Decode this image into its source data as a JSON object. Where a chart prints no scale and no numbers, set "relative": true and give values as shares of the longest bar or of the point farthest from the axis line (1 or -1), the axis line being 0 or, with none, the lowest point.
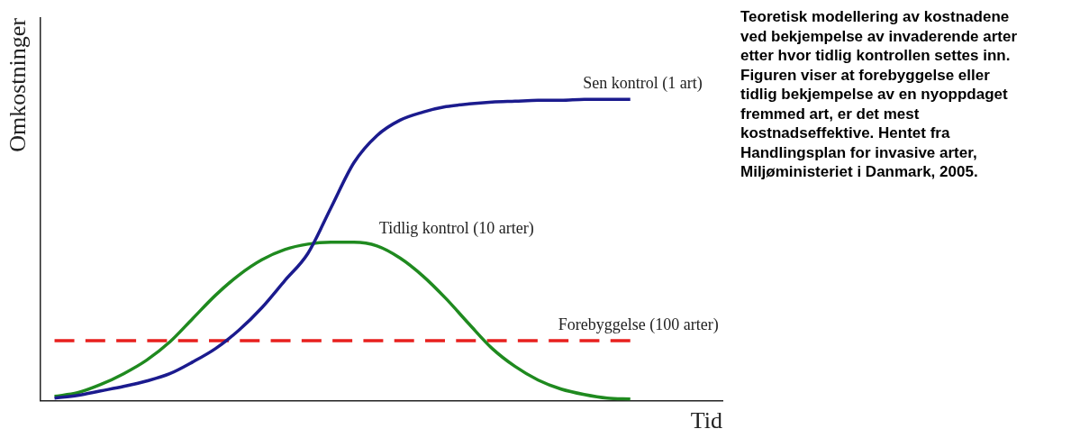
{
  "chart_data": {
    "type": "line",
    "relative": true,
    "xlabel": "Tid",
    "ylabel": "Omkostninger",
    "marker": "none",
    "legend": false,
    "categories": [
      null,
      null,
      null,
      null,
      null,
      null,
      null,
      null,
      null,
      null,
      null,
      null,
      null,
      null,
      null,
      null,
      null,
      null,
      null,
      null,
      null,
      null,
      null,
      null,
      null,
      null
    ],
    "series": [
      {
        "name": "Sen kontrol (1 art)",
        "color": "#1b1b8e",
        "values": [
          0.009,
          0.018,
          0.033,
          0.048,
          0.066,
          0.09,
          0.129,
          0.174,
          0.234,
          0.309,
          0.399,
          0.489,
          0.64,
          0.79,
          0.88,
          0.931,
          0.958,
          0.976,
          0.985,
          0.991,
          0.994,
          0.997,
          0.997,
          1,
          1,
          1
        ]
      },
      {
        "name": "Tidlig kontrol (10 arter)",
        "color": "#1f8a1f",
        "values": [
          0.015,
          0.027,
          0.054,
          0.09,
          0.135,
          0.195,
          0.273,
          0.351,
          0.417,
          0.468,
          0.502,
          0.52,
          0.526,
          0.526,
          0.514,
          0.474,
          0.414,
          0.339,
          0.255,
          0.174,
          0.114,
          0.069,
          0.039,
          0.021,
          0.009,
          0.006
        ]
      },
      {
        "name": "Forebyggelse (100 arter)",
        "color": "#e8201e",
        "line_style": "dashed",
        "values": [
          0.2,
          0.2,
          0.2,
          0.2,
          0.2,
          0.2,
          0.2,
          0.2,
          0.2,
          0.2,
          0.2,
          0.2,
          0.2,
          0.2,
          0.2,
          0.2,
          0.2,
          0.2,
          0.2,
          0.2,
          0.2,
          0.2,
          0.2,
          0.2,
          0.2,
          0.2
        ]
      }
    ],
    "annotations": [
      "Teoretisk modellering av kostnadene ved bekjempelse av invaderende arter etter hvor tidlig kontrollen settes inn. Figuren viser at forebyggelse eller tidlig bekjempelse av en nyoppdaget fremmed art, er det mest kostnadseffektive. Hentet fra Handlingsplan for invasive arter, Miljøministeriet i Danmark, 2005."
    ]
  }
}
